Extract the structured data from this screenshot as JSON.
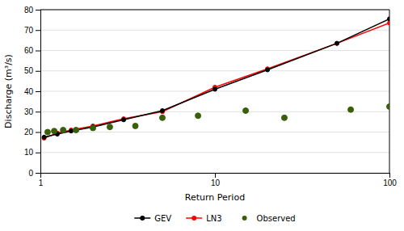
{
  "chart_data": {
    "type": "line",
    "x_label": "Return Period",
    "y_label": "Discharge (m³/s)",
    "log": "x",
    "xlim": [
      1,
      100
    ],
    "xticks": [
      1,
      10,
      100
    ],
    "ylim": [
      0,
      80
    ],
    "yticks": [
      0,
      10,
      20,
      30,
      40,
      50,
      60,
      70,
      80
    ],
    "grid": "y",
    "legend": "bottom",
    "series": [
      {
        "name": "GEV",
        "type": "line",
        "marker": "circle",
        "color": "#000000",
        "x": [
          1.05,
          1.25,
          1.5,
          2.0,
          3.0,
          5.0,
          10.0,
          20.0,
          50.0,
          100.0
        ],
        "values": [
          17.5,
          19.0,
          20.5,
          22.5,
          26.0,
          30.5,
          41.0,
          50.5,
          63.5,
          75.5
        ]
      },
      {
        "name": "LN3",
        "type": "line",
        "marker": "circle",
        "color": "#ff0000",
        "x": [
          1.05,
          1.25,
          1.5,
          2.0,
          3.0,
          5.0,
          10.0,
          20.0,
          50.0,
          100.0
        ],
        "values": [
          17.0,
          19.5,
          21.0,
          23.0,
          26.5,
          30.0,
          42.0,
          51.0,
          63.5,
          73.5
        ]
      },
      {
        "name": "Observed",
        "type": "scatter",
        "marker": "circle",
        "color": "#3a5f0b",
        "x": [
          1.1,
          1.2,
          1.35,
          1.6,
          2.0,
          2.5,
          3.5,
          5.0,
          8.0,
          15.0,
          25.0,
          60.0,
          100.0
        ],
        "values": [
          20.0,
          20.5,
          21.0,
          21.0,
          22.0,
          22.5,
          23.0,
          27.0,
          28.0,
          30.5,
          27.0,
          31.0,
          32.5
        ]
      }
    ]
  }
}
